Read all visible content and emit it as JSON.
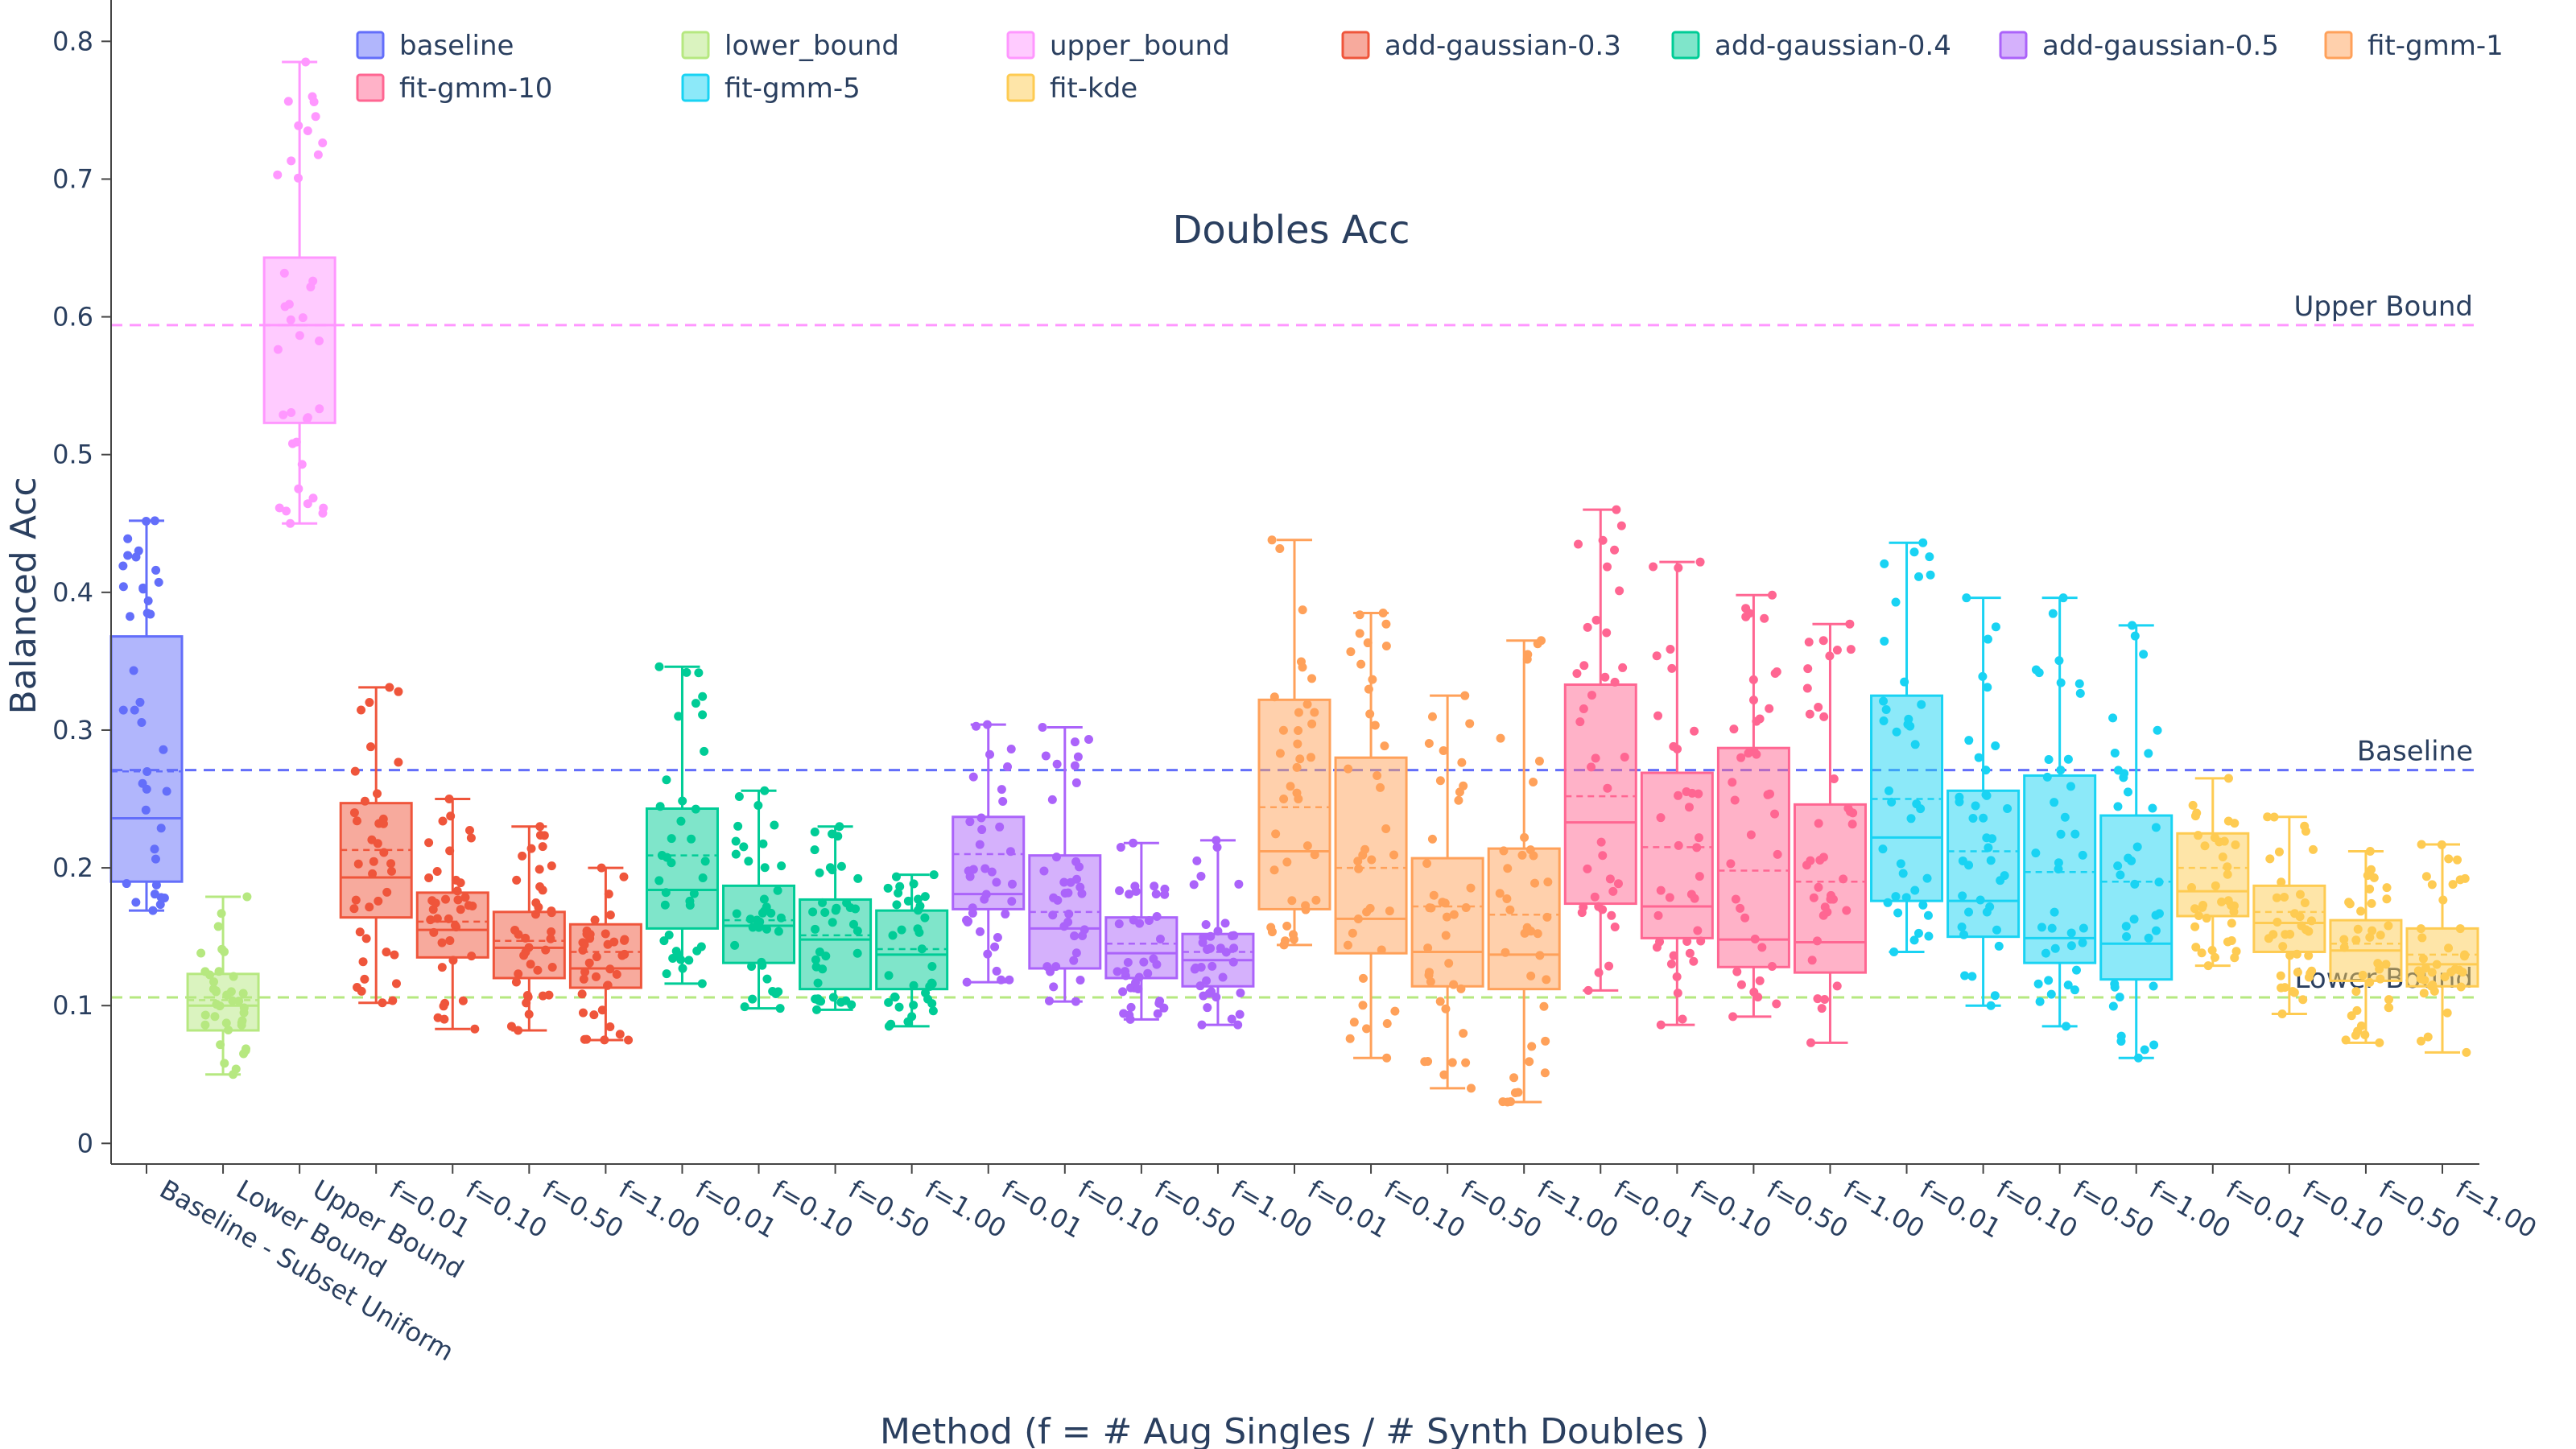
{
  "chart_data": {
    "type": "box",
    "title": "Doubles Acc",
    "xlabel": "Method (f = # Aug Singles / # Synth Doubles )",
    "ylabel": "Balanced Acc",
    "ylim": [
      -0.015,
      0.83
    ],
    "yticks": [
      0,
      0.1,
      0.2,
      0.3,
      0.4,
      0.5,
      0.6,
      0.7,
      0.8
    ],
    "ytick_labels": [
      "0",
      "0.1",
      "0.2",
      "0.3",
      "0.4",
      "0.5",
      "0.6",
      "0.7",
      "0.8"
    ],
    "grid": false,
    "legend_position": "top",
    "legend": [
      {
        "name": "baseline",
        "color": "#636efa"
      },
      {
        "name": "lower_bound",
        "color": "#b6e880"
      },
      {
        "name": "upper_bound",
        "color": "#ff97ff"
      },
      {
        "name": "add-gaussian-0.3",
        "color": "#ef553b"
      },
      {
        "name": "add-gaussian-0.4",
        "color": "#00cc96"
      },
      {
        "name": "add-gaussian-0.5",
        "color": "#ab63fa"
      },
      {
        "name": "fit-gmm-1",
        "color": "#ffa15a"
      },
      {
        "name": "fit-gmm-10",
        "color": "#ff6692"
      },
      {
        "name": "fit-gmm-5",
        "color": "#19d3f3"
      },
      {
        "name": "fit-kde",
        "color": "#fecb52"
      }
    ],
    "reference_lines": [
      {
        "label": "Upper Bound",
        "y": 0.594,
        "color": "#ff97ff"
      },
      {
        "label": "Baseline",
        "y": 0.271,
        "color": "#636efa"
      },
      {
        "label": "Lower Bound",
        "y": 0.106,
        "color": "#b6e880"
      }
    ],
    "categories": [
      "Baseline - Subset Uniform",
      "Lower Bound",
      "Upper Bound",
      "f=0.01",
      "f=0.10",
      "f=0.50",
      "f=1.00",
      "f=0.01",
      "f=0.10",
      "f=0.50",
      "f=1.00",
      "f=0.01",
      "f=0.10",
      "f=0.50",
      "f=1.00",
      "f=0.01",
      "f=0.10",
      "f=0.50",
      "f=1.00",
      "f=0.01",
      "f=0.10",
      "f=0.50",
      "f=1.00",
      "f=0.01",
      "f=0.10",
      "f=0.50",
      "f=1.00",
      "f=0.01",
      "f=0.10",
      "f=0.50",
      "f=1.00"
    ],
    "boxes": [
      {
        "series": "baseline",
        "color": "#636efa",
        "min": 0.169,
        "q1": 0.19,
        "median": 0.236,
        "mean": 0.27,
        "q3": 0.368,
        "max": 0.452
      },
      {
        "series": "lower_bound",
        "color": "#b6e880",
        "min": 0.05,
        "q1": 0.082,
        "median": 0.1,
        "mean": 0.104,
        "q3": 0.123,
        "max": 0.179
      },
      {
        "series": "upper_bound",
        "color": "#ff97ff",
        "min": 0.45,
        "q1": 0.523,
        "median": 0.594,
        "mean": 0.594,
        "q3": 0.643,
        "max": 0.785
      },
      {
        "series": "add-gaussian-0.3",
        "color": "#ef553b",
        "min": 0.102,
        "q1": 0.164,
        "median": 0.193,
        "mean": 0.213,
        "q3": 0.247,
        "max": 0.331
      },
      {
        "series": "add-gaussian-0.3",
        "color": "#ef553b",
        "min": 0.083,
        "q1": 0.135,
        "median": 0.155,
        "mean": 0.161,
        "q3": 0.182,
        "max": 0.25
      },
      {
        "series": "add-gaussian-0.3",
        "color": "#ef553b",
        "min": 0.082,
        "q1": 0.12,
        "median": 0.142,
        "mean": 0.147,
        "q3": 0.168,
        "max": 0.23
      },
      {
        "series": "add-gaussian-0.3",
        "color": "#ef553b",
        "min": 0.075,
        "q1": 0.113,
        "median": 0.127,
        "mean": 0.139,
        "q3": 0.159,
        "max": 0.2
      },
      {
        "series": "add-gaussian-0.4",
        "color": "#00cc96",
        "min": 0.116,
        "q1": 0.156,
        "median": 0.184,
        "mean": 0.209,
        "q3": 0.243,
        "max": 0.346
      },
      {
        "series": "add-gaussian-0.4",
        "color": "#00cc96",
        "min": 0.098,
        "q1": 0.131,
        "median": 0.158,
        "mean": 0.162,
        "q3": 0.187,
        "max": 0.256
      },
      {
        "series": "add-gaussian-0.4",
        "color": "#00cc96",
        "min": 0.097,
        "q1": 0.112,
        "median": 0.148,
        "mean": 0.151,
        "q3": 0.177,
        "max": 0.23
      },
      {
        "series": "add-gaussian-0.4",
        "color": "#00cc96",
        "min": 0.085,
        "q1": 0.112,
        "median": 0.137,
        "mean": 0.141,
        "q3": 0.169,
        "max": 0.195
      },
      {
        "series": "add-gaussian-0.5",
        "color": "#ab63fa",
        "min": 0.117,
        "q1": 0.17,
        "median": 0.181,
        "mean": 0.21,
        "q3": 0.237,
        "max": 0.304
      },
      {
        "series": "add-gaussian-0.5",
        "color": "#ab63fa",
        "min": 0.103,
        "q1": 0.127,
        "median": 0.156,
        "mean": 0.168,
        "q3": 0.209,
        "max": 0.302
      },
      {
        "series": "add-gaussian-0.5",
        "color": "#ab63fa",
        "min": 0.09,
        "q1": 0.12,
        "median": 0.138,
        "mean": 0.145,
        "q3": 0.164,
        "max": 0.218
      },
      {
        "series": "add-gaussian-0.5",
        "color": "#ab63fa",
        "min": 0.086,
        "q1": 0.114,
        "median": 0.133,
        "mean": 0.139,
        "q3": 0.152,
        "max": 0.22
      },
      {
        "series": "fit-gmm-1",
        "color": "#ffa15a",
        "min": 0.144,
        "q1": 0.17,
        "median": 0.212,
        "mean": 0.244,
        "q3": 0.322,
        "max": 0.438
      },
      {
        "series": "fit-gmm-1",
        "color": "#ffa15a",
        "min": 0.062,
        "q1": 0.138,
        "median": 0.163,
        "mean": 0.2,
        "q3": 0.28,
        "max": 0.385
      },
      {
        "series": "fit-gmm-1",
        "color": "#ffa15a",
        "min": 0.04,
        "q1": 0.114,
        "median": 0.139,
        "mean": 0.172,
        "q3": 0.207,
        "max": 0.325
      },
      {
        "series": "fit-gmm-1",
        "color": "#ffa15a",
        "min": 0.03,
        "q1": 0.112,
        "median": 0.137,
        "mean": 0.166,
        "q3": 0.214,
        "max": 0.365
      },
      {
        "series": "fit-gmm-10",
        "color": "#ff6692",
        "min": 0.111,
        "q1": 0.174,
        "median": 0.233,
        "mean": 0.252,
        "q3": 0.333,
        "max": 0.46
      },
      {
        "series": "fit-gmm-10",
        "color": "#ff6692",
        "min": 0.086,
        "q1": 0.149,
        "median": 0.172,
        "mean": 0.215,
        "q3": 0.269,
        "max": 0.422
      },
      {
        "series": "fit-gmm-10",
        "color": "#ff6692",
        "min": 0.092,
        "q1": 0.128,
        "median": 0.148,
        "mean": 0.198,
        "q3": 0.287,
        "max": 0.398
      },
      {
        "series": "fit-gmm-10",
        "color": "#ff6692",
        "min": 0.073,
        "q1": 0.124,
        "median": 0.146,
        "mean": 0.19,
        "q3": 0.246,
        "max": 0.377
      },
      {
        "series": "fit-gmm-5",
        "color": "#19d3f3",
        "min": 0.139,
        "q1": 0.176,
        "median": 0.222,
        "mean": 0.25,
        "q3": 0.325,
        "max": 0.436
      },
      {
        "series": "fit-gmm-5",
        "color": "#19d3f3",
        "min": 0.1,
        "q1": 0.15,
        "median": 0.176,
        "mean": 0.212,
        "q3": 0.256,
        "max": 0.396
      },
      {
        "series": "fit-gmm-5",
        "color": "#19d3f3",
        "min": 0.085,
        "q1": 0.131,
        "median": 0.149,
        "mean": 0.197,
        "q3": 0.267,
        "max": 0.396
      },
      {
        "series": "fit-gmm-5",
        "color": "#19d3f3",
        "min": 0.062,
        "q1": 0.119,
        "median": 0.145,
        "mean": 0.19,
        "q3": 0.238,
        "max": 0.376
      },
      {
        "series": "fit-kde",
        "color": "#fecb52",
        "min": 0.129,
        "q1": 0.165,
        "median": 0.183,
        "mean": 0.2,
        "q3": 0.225,
        "max": 0.265
      },
      {
        "series": "fit-kde",
        "color": "#fecb52",
        "min": 0.094,
        "q1": 0.139,
        "median": 0.16,
        "mean": 0.168,
        "q3": 0.187,
        "max": 0.237
      },
      {
        "series": "fit-kde",
        "color": "#fecb52",
        "min": 0.073,
        "q1": 0.118,
        "median": 0.14,
        "mean": 0.145,
        "q3": 0.162,
        "max": 0.212
      },
      {
        "series": "fit-kde",
        "color": "#fecb52",
        "min": 0.066,
        "q1": 0.114,
        "median": 0.13,
        "mean": 0.137,
        "q3": 0.156,
        "max": 0.217
      }
    ]
  }
}
